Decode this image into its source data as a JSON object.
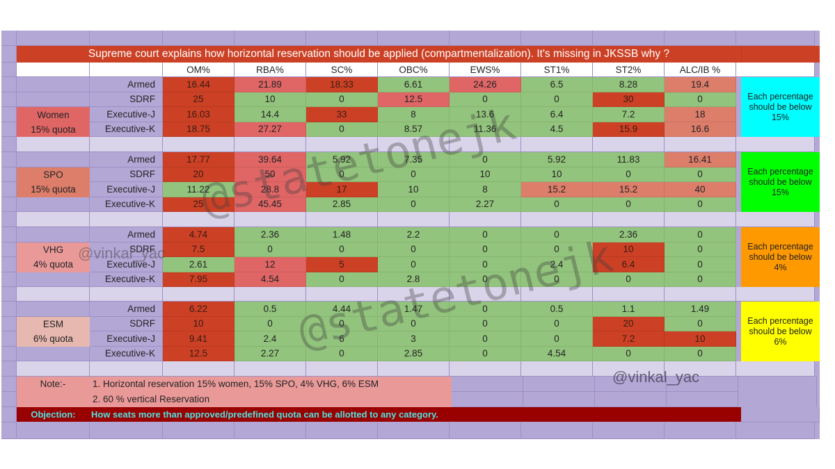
{
  "title": "Supreme court explains how horizontal reservation should be applied (compartmentalization). It's missing in JKSSB why ?",
  "columns": [
    "OM%",
    "RBA%",
    "SC%",
    "OBC%",
    "EWS%",
    "ST1%",
    "ST2%",
    "ALC/IB %"
  ],
  "groups": [
    {
      "name": "Women",
      "quota": "15% quota",
      "note": "Each percentage should be below 15%",
      "rows": [
        {
          "label": "Armed",
          "values": [
            "16.44",
            "21.89",
            "18.33",
            "6.61",
            "24.26",
            "6.5",
            "8.28",
            "19.4"
          ]
        },
        {
          "label": "SDRF",
          "values": [
            "25",
            "10",
            "0",
            "12.5",
            "0",
            "0",
            "30",
            "0"
          ]
        },
        {
          "label": "Executive-J",
          "values": [
            "16.03",
            "14.4",
            "33",
            "8",
            "13.6",
            "6.4",
            "7.2",
            "18"
          ]
        },
        {
          "label": "Executive-K",
          "values": [
            "18.75",
            "27.27",
            "0",
            "8.57",
            "11.36",
            "4.5",
            "15.9",
            "16.6"
          ]
        }
      ]
    },
    {
      "name": "SPO",
      "quota": "15% quota",
      "note": "Each percentage should be below 15%",
      "rows": [
        {
          "label": "Armed",
          "values": [
            "17.77",
            "39.64",
            "5.92",
            "7.35",
            "0",
            "5.92",
            "11.83",
            "16.41"
          ]
        },
        {
          "label": "SDRF",
          "values": [
            "20",
            "50",
            "0",
            "0",
            "10",
            "10",
            "0",
            "0"
          ]
        },
        {
          "label": "Executive-J",
          "values": [
            "11.22",
            "28.8",
            "17",
            "10",
            "8",
            "15.2",
            "15.2",
            "40"
          ]
        },
        {
          "label": "Executive-K",
          "values": [
            "25",
            "45.45",
            "2.85",
            "0",
            "2.27",
            "0",
            "0",
            "0"
          ]
        }
      ]
    },
    {
      "name": "VHG",
      "quota": "4% quota",
      "note": "Each percentage should be below 4%",
      "rows": [
        {
          "label": "Armed",
          "values": [
            "4.74",
            "2.36",
            "1.48",
            "2.2",
            "0",
            "0",
            "2.36",
            "0"
          ]
        },
        {
          "label": "SDRF",
          "values": [
            "7.5",
            "0",
            "0",
            "0",
            "0",
            "0",
            "10",
            "0"
          ]
        },
        {
          "label": "Executive-J",
          "values": [
            "2.61",
            "12",
            "5",
            "0",
            "0",
            "2.4",
            "6.4",
            "0"
          ]
        },
        {
          "label": "Executive-K",
          "values": [
            "7.95",
            "4.54",
            "0",
            "2.8",
            "0",
            "0",
            "0",
            "0"
          ]
        }
      ]
    },
    {
      "name": "ESM",
      "quota": "6% quota",
      "note": "Each percentage should be below 6%",
      "rows": [
        {
          "label": "Armed",
          "values": [
            "6.22",
            "0.5",
            "4.44",
            "1.47",
            "0",
            "0.5",
            "1.1",
            "1.49"
          ]
        },
        {
          "label": "SDRF",
          "values": [
            "10",
            "0",
            "0",
            "0",
            "0",
            "0",
            "20",
            "0"
          ]
        },
        {
          "label": "Executive-J",
          "values": [
            "9.41",
            "2.4",
            "6",
            "3",
            "0",
            "0",
            "7.2",
            "10"
          ]
        },
        {
          "label": "Executive-K",
          "values": [
            "12.5",
            "2.27",
            "0",
            "2.85",
            "0",
            "4.54",
            "0",
            "0"
          ]
        }
      ]
    }
  ],
  "notes": {
    "label": "Note:-",
    "line1": "1. Horizontal reservation 15% women, 15% SPO, 4% VHG, 6% ESM",
    "line2": "2. 60 % vertical Reservation"
  },
  "objection": {
    "label": "Objection:",
    "text": "How seats more than approved/predefined quota can be allotted to any category."
  },
  "watermarks": {
    "main": "@statetonejk",
    "handle": "@vinkal_yac"
  },
  "colors": {
    "header_red": "#cc4125",
    "over_red": "#cc4125",
    "light_red": "#e06666",
    "salmon": "#dd7e6b",
    "ok_green": "#93c47d",
    "women_note": "#00ffff",
    "spo_note": "#00ff00",
    "vhg_note": "#ff9900",
    "esm_note": "#ffff00",
    "objection_bg": "#990000",
    "objection_text": "#4fe3e0"
  }
}
